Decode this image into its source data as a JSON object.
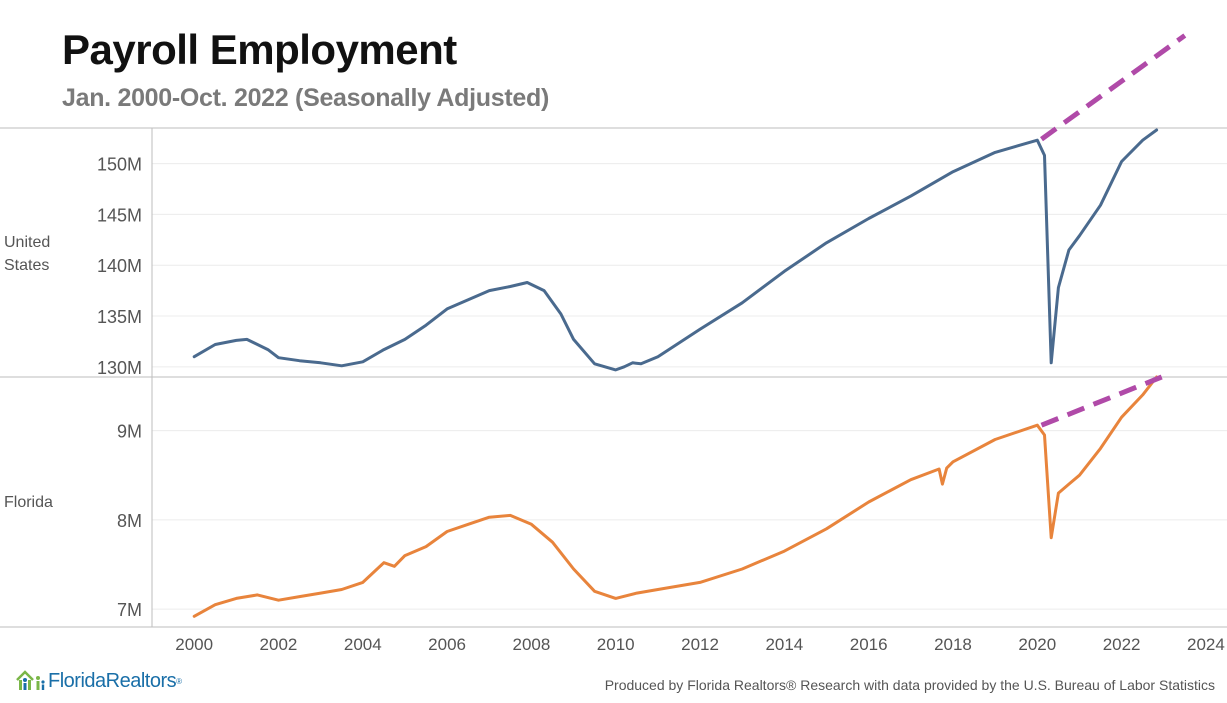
{
  "header": {
    "title": "Payroll Employment",
    "subtitle": "Jan. 2000-Oct. 2022 (Seasonally Adjusted)"
  },
  "footer": {
    "logo_text": "FloridaRealtors",
    "logo_mark": "®",
    "credit": "Produced by Florida Realtors® Research with data provided by the U.S. Bureau of Labor Statistics"
  },
  "colors": {
    "us_line": "#4a6a8e",
    "fl_line": "#e8843c",
    "trend_line": "#b04aa8",
    "grid": "#ececec",
    "axis": "#bdbdbd"
  },
  "chart_data": [
    {
      "type": "line",
      "panel": "United States",
      "row_label": [
        "United",
        "States"
      ],
      "xlim": [
        1999,
        2024.5
      ],
      "ylim": [
        129,
        153.5
      ],
      "yticks": [
        130,
        135,
        140,
        145,
        150
      ],
      "ytick_labels": [
        "130M",
        "135M",
        "140M",
        "145M",
        "150M"
      ],
      "series": [
        {
          "name": "Payroll employment",
          "x": [
            2000.0,
            2000.5,
            2001.0,
            2001.25,
            2001.75,
            2002.0,
            2002.5,
            2003.0,
            2003.5,
            2004.0,
            2004.5,
            2005.0,
            2005.5,
            2006.0,
            2006.5,
            2007.0,
            2007.5,
            2007.9,
            2008.3,
            2008.7,
            2009.0,
            2009.5,
            2010.0,
            2010.2,
            2010.4,
            2010.6,
            2011.0,
            2012.0,
            2013.0,
            2014.0,
            2015.0,
            2016.0,
            2017.0,
            2018.0,
            2019.0,
            2020.0,
            2020.17,
            2020.33,
            2020.5,
            2020.75,
            2021.0,
            2021.5,
            2022.0,
            2022.5,
            2022.83
          ],
          "values": [
            131,
            132.2,
            132.6,
            132.7,
            131.7,
            130.9,
            130.6,
            130.4,
            130.1,
            130.5,
            131.7,
            132.7,
            134.1,
            135.7,
            136.6,
            137.5,
            137.9,
            138.3,
            137.5,
            135.2,
            132.7,
            130.3,
            129.7,
            130,
            130.4,
            130.3,
            131,
            133.7,
            136.3,
            139.4,
            142.2,
            144.6,
            146.8,
            149.2,
            151.1,
            152.3,
            150.8,
            130.4,
            137.8,
            141.5,
            142.9,
            145.9,
            150.2,
            152.3,
            153.3
          ]
        },
        {
          "name": "Pre-pandemic trend",
          "style": "dashed",
          "x": [
            2020.1,
            2023.5
          ],
          "values": [
            152.4,
            162.6
          ]
        }
      ]
    },
    {
      "type": "line",
      "panel": "Florida",
      "row_label": [
        "Florida"
      ],
      "xlim": [
        1999,
        2024.5
      ],
      "ylim": [
        6.8,
        9.6
      ],
      "yticks": [
        7,
        8,
        9
      ],
      "ytick_labels": [
        "7M",
        "8M",
        "9M"
      ],
      "series": [
        {
          "name": "Payroll employment",
          "x": [
            2000.0,
            2000.5,
            2001.0,
            2001.5,
            2002.0,
            2002.5,
            2003.0,
            2003.5,
            2004.0,
            2004.5,
            2004.75,
            2005.0,
            2005.5,
            2006.0,
            2006.5,
            2007.0,
            2007.5,
            2008.0,
            2008.5,
            2009.0,
            2009.5,
            2010.0,
            2010.5,
            2011.0,
            2012.0,
            2013.0,
            2014.0,
            2015.0,
            2016.0,
            2017.0,
            2017.67,
            2017.75,
            2017.85,
            2018.0,
            2019.0,
            2020.0,
            2020.17,
            2020.33,
            2020.5,
            2020.75,
            2021.0,
            2021.5,
            2022.0,
            2022.5,
            2022.83
          ],
          "values": [
            6.92,
            7.05,
            7.12,
            7.16,
            7.1,
            7.14,
            7.18,
            7.22,
            7.3,
            7.52,
            7.48,
            7.6,
            7.7,
            7.87,
            7.95,
            8.03,
            8.05,
            7.95,
            7.75,
            7.45,
            7.2,
            7.12,
            7.18,
            7.22,
            7.3,
            7.45,
            7.65,
            7.9,
            8.2,
            8.45,
            8.57,
            8.4,
            8.58,
            8.65,
            8.9,
            9.06,
            8.95,
            7.8,
            8.3,
            8.4,
            8.5,
            8.8,
            9.15,
            9.4,
            9.6
          ]
        },
        {
          "name": "Pre-pandemic trend",
          "style": "dashed",
          "x": [
            2020.1,
            2022.95
          ],
          "values": [
            9.06,
            9.6
          ]
        }
      ]
    }
  ],
  "x_axis": {
    "ticks": [
      2000,
      2002,
      2004,
      2006,
      2008,
      2010,
      2012,
      2014,
      2016,
      2018,
      2020,
      2022,
      2024
    ],
    "tick_labels": [
      "2000",
      "2002",
      "2004",
      "2006",
      "2008",
      "2010",
      "2012",
      "2014",
      "2016",
      "2018",
      "2020",
      "2022",
      "2024"
    ]
  }
}
